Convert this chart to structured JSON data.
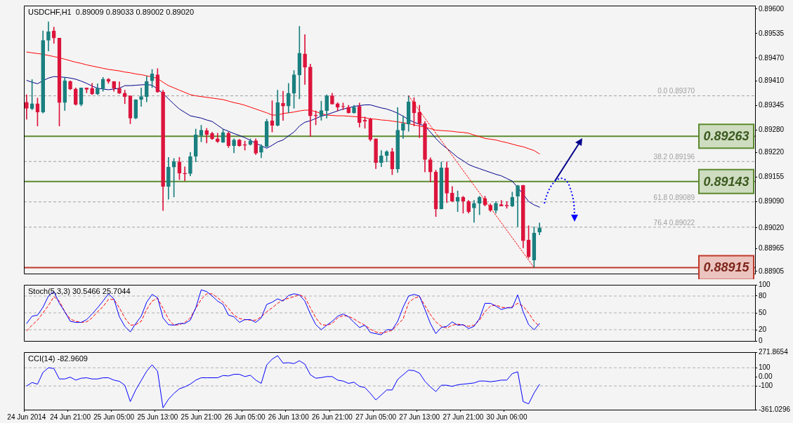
{
  "chart_data": [
    {
      "type": "candlestick",
      "title": "USDCHF,H1  0.89009 0.89033 0.89002 0.89020",
      "categories": [
        null,
        null,
        null,
        null,
        null,
        null,
        null,
        null,
        null,
        null,
        null,
        null,
        null,
        null,
        null,
        null,
        null,
        null,
        null,
        null,
        null,
        null,
        null,
        null,
        null,
        null,
        null,
        null,
        null,
        null,
        null,
        null,
        null,
        null,
        null,
        null,
        null,
        null,
        null,
        null,
        null,
        null,
        null,
        null,
        null,
        null,
        null,
        null,
        null,
        null,
        null,
        null,
        null,
        null,
        null,
        null,
        null,
        null,
        null,
        null,
        null,
        null,
        null,
        null,
        null,
        null,
        null,
        null,
        null,
        null,
        null,
        null,
        null,
        null,
        null,
        null,
        null,
        null,
        null,
        null,
        null,
        null,
        null,
        null,
        null,
        null,
        null,
        null,
        null,
        null,
        null,
        null,
        null,
        null,
        null
      ],
      "ohlc": [
        [
          0.89353,
          0.89373,
          0.89308,
          0.89337
        ],
        [
          0.89336,
          0.89413,
          0.89333,
          0.89349
        ],
        [
          0.89349,
          0.89364,
          0.8929,
          0.89327
        ],
        [
          0.89327,
          0.89542,
          0.89324,
          0.89517
        ],
        [
          0.89517,
          0.89566,
          0.89489,
          0.8954
        ],
        [
          0.89542,
          0.89552,
          0.89509,
          0.89523
        ],
        [
          0.89523,
          0.89523,
          0.8929,
          0.89352
        ],
        [
          0.89352,
          0.89419,
          0.89331,
          0.8941
        ],
        [
          0.89408,
          0.8941,
          0.89386,
          0.89388
        ],
        [
          0.89388,
          0.89391,
          0.89345,
          0.89347
        ],
        [
          0.89347,
          0.89391,
          0.89343,
          0.89391
        ],
        [
          0.89391,
          0.89391,
          0.89378,
          0.89387
        ],
        [
          0.8939,
          0.89403,
          0.89373,
          0.89375
        ],
        [
          0.89375,
          0.89402,
          0.89373,
          0.89389
        ],
        [
          0.89389,
          0.89419,
          0.89382,
          0.89414
        ],
        [
          0.89414,
          0.89416,
          0.89403,
          0.89408
        ],
        [
          0.89408,
          0.89408,
          0.89382,
          0.8939
        ],
        [
          0.8939,
          0.89407,
          0.89376,
          0.89377
        ],
        [
          0.89377,
          0.89385,
          0.89349,
          0.89368
        ],
        [
          0.8937,
          0.8937,
          0.89296,
          0.89311
        ],
        [
          0.89311,
          0.8936,
          0.89309,
          0.8936
        ],
        [
          0.8936,
          0.89391,
          0.89342,
          0.89368
        ],
        [
          0.89368,
          0.89422,
          0.89354,
          0.89408
        ],
        [
          0.8941,
          0.8944,
          0.89392,
          0.89428
        ],
        [
          0.89426,
          0.89442,
          0.89379,
          0.8938
        ],
        [
          0.8938,
          0.89385,
          0.89066,
          0.8913
        ],
        [
          0.8913,
          0.89207,
          0.89096,
          0.89181
        ],
        [
          0.89181,
          0.89204,
          0.89102,
          0.89196
        ],
        [
          0.89195,
          0.89207,
          0.89148,
          0.89165
        ],
        [
          0.89165,
          0.89182,
          0.89145,
          0.89163
        ],
        [
          0.89164,
          0.8922,
          0.89158,
          0.89209
        ],
        [
          0.8921,
          0.89282,
          0.89195,
          0.89267
        ],
        [
          0.89265,
          0.89292,
          0.89248,
          0.89279
        ],
        [
          0.89278,
          0.89284,
          0.89245,
          0.89267
        ],
        [
          0.8927,
          0.89274,
          0.89254,
          0.89256
        ],
        [
          0.89256,
          0.89271,
          0.89246,
          0.89249
        ],
        [
          0.89247,
          0.89281,
          0.89246,
          0.89273
        ],
        [
          0.89271,
          0.89274,
          0.89233,
          0.89238
        ],
        [
          0.89238,
          0.89256,
          0.89219,
          0.89253
        ],
        [
          0.89253,
          0.89255,
          0.89236,
          0.89238
        ],
        [
          0.89241,
          0.8925,
          0.89226,
          0.89239
        ],
        [
          0.89241,
          0.89256,
          0.89239,
          0.8925
        ],
        [
          0.89251,
          0.89256,
          0.89214,
          0.89218
        ],
        [
          0.8922,
          0.89241,
          0.89206,
          0.89236
        ],
        [
          0.89236,
          0.89308,
          0.89234,
          0.89302
        ],
        [
          0.89304,
          0.89357,
          0.89274,
          0.89292
        ],
        [
          0.89292,
          0.89385,
          0.8929,
          0.89352
        ],
        [
          0.8935,
          0.89382,
          0.89305,
          0.89343
        ],
        [
          0.89343,
          0.89403,
          0.89325,
          0.89377
        ],
        [
          0.89377,
          0.89437,
          0.89337,
          0.89426
        ],
        [
          0.89425,
          0.89554,
          0.89362,
          0.89483
        ],
        [
          0.89481,
          0.89532,
          0.894,
          0.89446
        ],
        [
          0.89446,
          0.89454,
          0.89262,
          0.89317
        ],
        [
          0.89319,
          0.8933,
          0.89293,
          0.89317
        ],
        [
          0.89317,
          0.89356,
          0.89305,
          0.89331
        ],
        [
          0.89331,
          0.89373,
          0.89311,
          0.8937
        ],
        [
          0.8937,
          0.89377,
          0.89348,
          0.89348
        ],
        [
          0.89349,
          0.89352,
          0.8933,
          0.8934
        ],
        [
          0.89342,
          0.89351,
          0.89333,
          0.89341
        ],
        [
          0.8934,
          0.89345,
          0.89324,
          0.89325
        ],
        [
          0.89325,
          0.89345,
          0.89324,
          0.8934
        ],
        [
          0.89342,
          0.89351,
          0.89287,
          0.89299
        ],
        [
          0.89306,
          0.89314,
          0.89284,
          0.89303
        ],
        [
          0.89308,
          0.89311,
          0.8925,
          0.89254
        ],
        [
          0.89256,
          0.89256,
          0.89177,
          0.89193
        ],
        [
          0.89193,
          0.89225,
          0.89182,
          0.89211
        ],
        [
          0.89212,
          0.89225,
          0.89195,
          0.89222
        ],
        [
          0.89222,
          0.89231,
          0.89161,
          0.89176
        ],
        [
          0.89176,
          0.89339,
          0.89167,
          0.89279
        ],
        [
          0.89279,
          0.89317,
          0.89257,
          0.89297
        ],
        [
          0.89295,
          0.8937,
          0.89276,
          0.89354
        ],
        [
          0.89354,
          0.89365,
          0.8929,
          0.89325
        ],
        [
          0.89327,
          0.89345,
          0.89259,
          0.89296
        ],
        [
          0.89296,
          0.89302,
          0.89168,
          0.89201
        ],
        [
          0.89201,
          0.89206,
          0.89142,
          0.89168
        ],
        [
          0.89168,
          0.89173,
          0.8905,
          0.8907
        ],
        [
          0.8907,
          0.89195,
          0.8907,
          0.89179
        ],
        [
          0.89179,
          0.89195,
          0.89087,
          0.89112
        ],
        [
          0.89112,
          0.8913,
          0.89089,
          0.89091
        ],
        [
          0.89091,
          0.89118,
          0.89063,
          0.89101
        ],
        [
          0.89101,
          0.89104,
          0.89059,
          0.89091
        ],
        [
          0.8909,
          0.89093,
          0.89059,
          0.89063
        ],
        [
          0.89073,
          0.89093,
          0.89035,
          0.89085
        ],
        [
          0.89085,
          0.89104,
          0.89055,
          0.89101
        ],
        [
          0.89098,
          0.89104,
          0.89078,
          0.89081
        ],
        [
          0.8908,
          0.89084,
          0.89063,
          0.89067
        ],
        [
          0.89067,
          0.8909,
          0.89059,
          0.89085
        ],
        [
          0.89082,
          0.89093,
          0.89078,
          0.89078
        ],
        [
          0.8908,
          0.8909,
          0.89072,
          0.89078
        ],
        [
          0.89078,
          0.89115,
          0.89076,
          0.89101
        ],
        [
          0.89104,
          0.89133,
          0.89023,
          0.89132
        ],
        [
          0.89133,
          0.89133,
          0.88967,
          0.88986
        ],
        [
          0.88988,
          0.89026,
          0.8894,
          0.88944
        ],
        [
          0.88935,
          0.89023,
          0.88915,
          0.89006
        ],
        [
          0.89009,
          0.89033,
          0.89002,
          0.8902
        ]
      ],
      "series": [
        {
          "type": "line",
          "color": "#ff0000",
          "values": [
            0.89486,
            0.89484,
            0.89482,
            0.8948,
            0.89477,
            0.89474,
            0.89471,
            0.89467,
            0.89463,
            0.89459,
            0.89456,
            0.89452,
            0.89449,
            0.89446,
            0.89443,
            0.8944,
            0.89438,
            0.89436,
            0.89433,
            0.89431,
            0.89428,
            0.89426,
            0.89423,
            0.8942,
            0.89416,
            0.89406,
            0.89397,
            0.89391,
            0.89385,
            0.89379,
            0.89373,
            0.8937,
            0.89368,
            0.89366,
            0.89364,
            0.89362,
            0.8936,
            0.89356,
            0.89352,
            0.89349,
            0.89345,
            0.8934,
            0.89335,
            0.8933,
            0.89325,
            0.89319,
            0.89319,
            0.89323,
            0.89325,
            0.89327,
            0.8933,
            0.89332,
            0.89332,
            0.89328,
            0.89323,
            0.89319,
            0.89318,
            0.89317,
            0.89317,
            0.89316,
            0.89315,
            0.89314,
            0.89312,
            0.89309,
            0.89308,
            0.89306,
            0.89305,
            0.89303,
            0.89301,
            0.89299,
            0.89296,
            0.89293,
            0.8929,
            0.89287,
            0.89283,
            0.89279,
            0.89278,
            0.89277,
            0.89276,
            0.89274,
            0.89273,
            0.89271,
            0.89266,
            0.89262,
            0.89257,
            0.89255,
            0.89253,
            0.89249,
            0.89246,
            0.89242,
            0.89238,
            0.89235,
            0.8923,
            0.89225,
            0.89216
          ]
        },
        {
          "type": "line",
          "color": "#00008b",
          "values": [
            0.89411,
            0.89406,
            0.89402,
            0.8941,
            0.89417,
            0.89421,
            0.8942,
            0.89419,
            0.89417,
            0.89414,
            0.89409,
            0.89403,
            0.89396,
            0.8939,
            0.89388,
            0.89386,
            0.89388,
            0.8939,
            0.89397,
            0.89397,
            0.89398,
            0.89399,
            0.894,
            0.89398,
            0.89388,
            0.89376,
            0.89362,
            0.89348,
            0.89335,
            0.89326,
            0.89317,
            0.89314,
            0.89311,
            0.89306,
            0.89302,
            0.89292,
            0.89282,
            0.89276,
            0.8927,
            0.89265,
            0.89259,
            0.89252,
            0.89244,
            0.89238,
            0.89231,
            0.89239,
            0.89248,
            0.89253,
            0.89264,
            0.89274,
            0.8929,
            0.893,
            0.89304,
            0.8931,
            0.89316,
            0.8932,
            0.89325,
            0.8933,
            0.89335,
            0.89338,
            0.89342,
            0.89344,
            0.89346,
            0.89346,
            0.89342,
            0.89338,
            0.89335,
            0.8933,
            0.89324,
            0.89316,
            0.89307,
            0.893,
            0.89295,
            0.8929,
            0.89274,
            0.89257,
            0.89242,
            0.89231,
            0.89219,
            0.89207,
            0.89198,
            0.89188,
            0.89182,
            0.89177,
            0.89172,
            0.89167,
            0.89162,
            0.89158,
            0.89151,
            0.89144,
            0.89127,
            0.89109,
            0.8909,
            0.89081,
            0.89075
          ]
        },
        {
          "type": "line",
          "color": "#ff0000",
          "line_style": "dotted",
          "values": [
            null,
            null,
            null,
            null,
            null,
            null,
            null,
            null,
            null,
            null,
            null,
            null,
            null,
            null,
            null,
            null,
            null,
            null,
            null,
            null,
            null,
            null,
            null,
            null,
            null,
            null,
            null,
            null,
            null,
            null,
            null,
            null,
            null,
            null,
            null,
            null,
            null,
            null,
            null,
            null,
            null,
            null,
            null,
            null,
            null,
            null,
            null,
            null,
            null,
            null,
            null,
            null,
            null,
            null,
            null,
            null,
            null,
            null,
            null,
            null,
            null,
            null,
            null,
            null,
            null,
            null,
            null,
            null,
            null,
            null,
            0.8937,
            null,
            null,
            null,
            null,
            null,
            null,
            null,
            null,
            null,
            null,
            null,
            null,
            null,
            null,
            null,
            null,
            null,
            null,
            null,
            null,
            null,
            null,
            0.88915,
            null
          ]
        }
      ],
      "ylim": [
        0.88899,
        0.89609
      ],
      "yticks": [
        {
          "value": 0.896,
          "label": "0.89600"
        },
        {
          "value": 0.89535,
          "label": "0.89535"
        },
        {
          "value": 0.8947,
          "label": "0.89470"
        },
        {
          "value": 0.8941,
          "label": "0.89410"
        },
        {
          "value": 0.89345,
          "label": "0.89345"
        },
        {
          "value": 0.8928,
          "label": "0.89280"
        },
        {
          "value": 0.8922,
          "label": "0.89220"
        },
        {
          "value": 0.89155,
          "label": "0.89155"
        },
        {
          "value": 0.8909,
          "label": "0.89090"
        },
        {
          "value": 0.8902,
          "label": "0.89020"
        },
        {
          "value": 0.88965,
          "label": "0.88965"
        },
        {
          "value": 0.88905,
          "label": "0.88905"
        }
      ],
      "ref_lines": [
        {
          "axis": "y",
          "value": 0.89263,
          "label": "0.89263",
          "color": "#5b8a2e",
          "line_style": "solid"
        },
        {
          "axis": "y",
          "value": 0.89143,
          "label": "0.89143",
          "color": "#5b8a2e",
          "line_style": "solid"
        },
        {
          "axis": "y",
          "value": 0.88915,
          "label": "0.88915",
          "color": "#c0392b",
          "line_style": "solid"
        },
        {
          "axis": "y",
          "value": 0.8937,
          "label": "0.0 0.89370",
          "color": "#a0a0a0",
          "line_style": "dashed"
        },
        {
          "axis": "y",
          "value": 0.89196,
          "label": "38.2 0.89196",
          "color": "#a0a0a0",
          "line_style": "dashed"
        },
        {
          "axis": "y",
          "value": 0.89089,
          "label": "61.8 0.89089",
          "color": "#a0a0a0",
          "line_style": "dashed"
        },
        {
          "axis": "y",
          "value": 0.89022,
          "label": "76.4 0.89022",
          "color": "#a0a0a0",
          "line_style": "dashed"
        }
      ],
      "marker": "none",
      "tick_labels": "y"
    },
    {
      "type": "line",
      "title": "Stoch(5,3,3) 30.5466 25.7044",
      "categories": [
        null,
        null,
        null,
        null,
        null,
        null,
        null,
        null,
        null,
        null,
        null,
        null,
        null,
        null,
        null,
        null,
        null,
        null,
        null,
        null,
        null,
        null,
        null,
        null,
        null,
        null,
        null,
        null,
        null,
        null,
        null,
        null,
        null,
        null,
        null,
        null,
        null,
        null,
        null,
        null,
        null,
        null,
        null,
        null,
        null,
        null,
        null,
        null,
        null,
        null,
        null,
        null,
        null,
        null,
        null,
        null,
        null,
        null,
        null,
        null,
        null,
        null,
        null,
        null,
        null,
        null,
        null,
        null,
        null,
        null,
        null,
        null,
        null,
        null,
        null,
        null,
        null,
        null,
        null,
        null,
        null,
        null,
        null,
        null,
        null,
        null,
        null,
        null,
        null,
        null,
        null,
        null,
        null,
        null,
        null
      ],
      "series": [
        {
          "color": "#0000ff",
          "values": [
            31,
            44,
            46,
            60,
            80,
            88,
            67,
            52,
            35,
            33,
            33,
            38,
            48,
            59,
            71,
            84,
            75,
            43,
            26,
            16,
            31,
            44,
            69,
            83,
            77,
            41,
            29,
            28,
            31,
            31,
            37,
            59,
            91,
            88,
            80,
            71,
            65,
            46,
            43,
            33,
            38,
            38,
            33,
            41,
            65,
            69,
            75,
            71,
            81,
            84,
            82,
            71,
            48,
            29,
            20,
            28,
            35,
            44,
            48,
            43,
            33,
            24,
            28,
            15,
            13,
            11,
            20,
            20,
            35,
            60,
            80,
            83,
            80,
            56,
            31,
            13,
            24,
            26,
            34,
            28,
            29,
            22,
            26,
            40,
            67,
            67,
            62,
            56,
            59,
            59,
            82,
            52,
            29,
            20,
            31
          ]
        },
        {
          "color": "#ff0000",
          "line_style": "dashed",
          "values": [
            18,
            28,
            37,
            50,
            63,
            79,
            71,
            52,
            39,
            35,
            33,
            34,
            41,
            52,
            61,
            74,
            74,
            59,
            41,
            28,
            29,
            35,
            56,
            71,
            76,
            58,
            39,
            28,
            29,
            33,
            41,
            58,
            74,
            84,
            84,
            77,
            69,
            58,
            46,
            40,
            38,
            37,
            37,
            43,
            52,
            59,
            67,
            73,
            76,
            79,
            82,
            78,
            59,
            41,
            29,
            28,
            31,
            41,
            45,
            44,
            39,
            33,
            28,
            21,
            16,
            14,
            16,
            19,
            29,
            39,
            68,
            76,
            79,
            63,
            47,
            34,
            26,
            23,
            28,
            30,
            28,
            26,
            28,
            37,
            52,
            62,
            64,
            60,
            59,
            61,
            67,
            62,
            50,
            35,
            26
          ]
        }
      ],
      "ylim": [
        0,
        100
      ],
      "yticks": [
        0,
        20,
        50,
        80,
        100
      ],
      "ref_lines": [
        {
          "axis": "y",
          "value": 80,
          "color": "#b0b0b0",
          "line_style": "dashed"
        },
        {
          "axis": "y",
          "value": 50,
          "color": "#b0b0b0",
          "line_style": "dashed"
        },
        {
          "axis": "y",
          "value": 20,
          "color": "#b0b0b0",
          "line_style": "dashed"
        }
      ],
      "marker": "none",
      "tick_labels": "y"
    },
    {
      "type": "line",
      "title": "CCI(14) -82.9609",
      "categories": [
        "24 Jun 2014",
        null,
        null,
        null,
        null,
        null,
        null,
        null,
        "24 Jun 21:00",
        null,
        null,
        null,
        null,
        null,
        null,
        null,
        "25 Jun 05:00",
        null,
        null,
        null,
        null,
        null,
        null,
        null,
        "25 Jun 13:00",
        null,
        null,
        null,
        null,
        null,
        null,
        null,
        "25 Jun 21:00",
        null,
        null,
        null,
        null,
        null,
        null,
        null,
        "26 Jun 05:00",
        null,
        null,
        null,
        null,
        null,
        null,
        null,
        "26 Jun 13:00",
        null,
        null,
        null,
        null,
        null,
        null,
        null,
        "26 Jun 21:00",
        null,
        null,
        null,
        null,
        null,
        null,
        null,
        "27 Jun 05:00",
        null,
        null,
        null,
        null,
        null,
        null,
        null,
        "27 Jun 13:00",
        null,
        null,
        null,
        null,
        null,
        null,
        null,
        "27 Jun 21:00",
        null,
        null,
        null,
        null,
        null,
        null,
        null,
        "30 Jun 06:00",
        null,
        null,
        null,
        null,
        null,
        null
      ],
      "series": [
        {
          "color": "#0000ff",
          "values": [
            -100,
            -62,
            -80,
            49,
            100,
            92,
            -23,
            -23,
            -3,
            -36,
            -15,
            -10,
            -23,
            -23,
            -10,
            -10,
            -36,
            -49,
            -92,
            -272,
            -144,
            -41,
            62,
            133,
            62,
            -341,
            -246,
            -182,
            -131,
            -110,
            -80,
            -36,
            -10,
            -10,
            -10,
            -10,
            15,
            10,
            28,
            28,
            3,
            18,
            -36,
            -72,
            131,
            195,
            233,
            151,
            156,
            146,
            177,
            139,
            23,
            -15,
            -8,
            3,
            3,
            -36,
            -46,
            -72,
            -59,
            -105,
            -118,
            -182,
            -254,
            -200,
            -144,
            -144,
            -28,
            23,
            74,
            69,
            41,
            -49,
            -110,
            -162,
            -92,
            -92,
            -105,
            -87,
            -80,
            -74,
            -67,
            -46,
            -46,
            -54,
            -46,
            -36,
            -36,
            36,
            56,
            -272,
            -297,
            -177,
            -83
          ]
        }
      ],
      "ylim": [
        -361.0296,
        271.8654
      ],
      "yticks": [
        271.8654,
        100,
        {
          "value": 0,
          "label": "0.00"
        },
        -100,
        -361.0296
      ],
      "ref_lines": [
        {
          "axis": "y",
          "value": 100,
          "color": "#b0b0b0",
          "line_style": "dashed"
        },
        {
          "axis": "y",
          "value": -100,
          "color": "#b0b0b0",
          "line_style": "dashed"
        }
      ],
      "marker": "none"
    }
  ]
}
